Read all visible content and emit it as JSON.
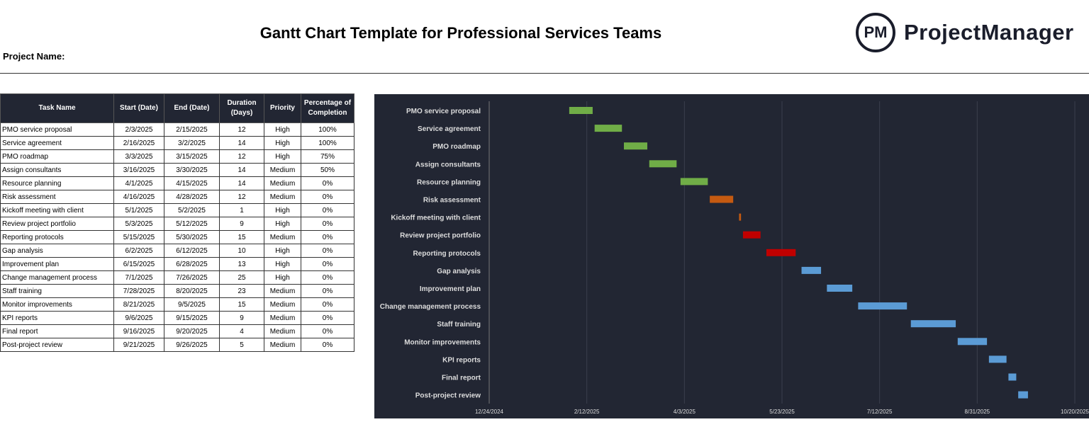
{
  "header": {
    "title": "Gantt Chart Template for Professional Services Teams",
    "project_name_label": "Project Name:",
    "logo_mark": "PM",
    "logo_text": "ProjectManager"
  },
  "table": {
    "columns": [
      "Task Name",
      "Start  (Date)",
      "End  (Date)",
      "Duration (Days)",
      "Priority",
      "Percentage of Completion"
    ],
    "rows": [
      [
        "PMO service proposal",
        "2/3/2025",
        "2/15/2025",
        "12",
        "High",
        "100%"
      ],
      [
        "Service agreement",
        "2/16/2025",
        "3/2/2025",
        "14",
        "High",
        "100%"
      ],
      [
        "PMO roadmap",
        "3/3/2025",
        "3/15/2025",
        "12",
        "High",
        "75%"
      ],
      [
        "Assign consultants",
        "3/16/2025",
        "3/30/2025",
        "14",
        "Medium",
        "50%"
      ],
      [
        "Resource planning",
        "4/1/2025",
        "4/15/2025",
        "14",
        "Medium",
        "0%"
      ],
      [
        "Risk assessment",
        "4/16/2025",
        "4/28/2025",
        "12",
        "Medium",
        "0%"
      ],
      [
        "Kickoff meeting with client",
        "5/1/2025",
        "5/2/2025",
        "1",
        "High",
        "0%"
      ],
      [
        "Review project portfolio",
        "5/3/2025",
        "5/12/2025",
        "9",
        "High",
        "0%"
      ],
      [
        "Reporting protocols",
        "5/15/2025",
        "5/30/2025",
        "15",
        "Medium",
        "0%"
      ],
      [
        "Gap analysis",
        "6/2/2025",
        "6/12/2025",
        "10",
        "High",
        "0%"
      ],
      [
        "Improvement plan",
        "6/15/2025",
        "6/28/2025",
        "13",
        "High",
        "0%"
      ],
      [
        "Change management process",
        "7/1/2025",
        "7/26/2025",
        "25",
        "High",
        "0%"
      ],
      [
        "Staff training",
        "7/28/2025",
        "8/20/2025",
        "23",
        "Medium",
        "0%"
      ],
      [
        "Monitor improvements",
        "8/21/2025",
        "9/5/2025",
        "15",
        "Medium",
        "0%"
      ],
      [
        "KPI reports",
        "9/6/2025",
        "9/15/2025",
        "9",
        "Medium",
        "0%"
      ],
      [
        "Final report",
        "9/16/2025",
        "9/20/2025",
        "4",
        "Medium",
        "0%"
      ],
      [
        "Post-project review",
        "9/21/2025",
        "9/26/2025",
        "5",
        "Medium",
        "0%"
      ]
    ]
  },
  "chart_data": {
    "type": "bar",
    "orientation": "horizontal-gantt",
    "background": "#222633",
    "xlim": [
      "12/24/2024",
      "10/20/2025"
    ],
    "x_ticks": [
      "12/24/2024",
      "2/12/2025",
      "4/3/2025",
      "5/23/2025",
      "7/12/2025",
      "8/31/2025",
      "10/20/2025"
    ],
    "grid": true,
    "tasks": [
      {
        "name": "PMO service proposal",
        "start": "2/3/2025",
        "end": "2/15/2025",
        "color": "#70ad47"
      },
      {
        "name": "Service agreement",
        "start": "2/16/2025",
        "end": "3/2/2025",
        "color": "#70ad47"
      },
      {
        "name": "PMO roadmap",
        "start": "3/3/2025",
        "end": "3/15/2025",
        "color": "#70ad47"
      },
      {
        "name": "Assign consultants",
        "start": "3/16/2025",
        "end": "3/30/2025",
        "color": "#70ad47"
      },
      {
        "name": "Resource planning",
        "start": "4/1/2025",
        "end": "4/15/2025",
        "color": "#70ad47"
      },
      {
        "name": "Risk assessment",
        "start": "4/16/2025",
        "end": "4/28/2025",
        "color": "#c55a11"
      },
      {
        "name": "Kickoff meeting with client",
        "start": "5/1/2025",
        "end": "5/2/2025",
        "color": "#c55a11"
      },
      {
        "name": "Review project portfolio",
        "start": "5/3/2025",
        "end": "5/12/2025",
        "color": "#c00000"
      },
      {
        "name": "Reporting protocols",
        "start": "5/15/2025",
        "end": "5/30/2025",
        "color": "#c00000"
      },
      {
        "name": "Gap analysis",
        "start": "6/2/2025",
        "end": "6/12/2025",
        "color": "#5b9bd5"
      },
      {
        "name": "Improvement plan",
        "start": "6/15/2025",
        "end": "6/28/2025",
        "color": "#5b9bd5"
      },
      {
        "name": "Change management process",
        "start": "7/1/2025",
        "end": "7/26/2025",
        "color": "#5b9bd5"
      },
      {
        "name": "Staff training",
        "start": "7/28/2025",
        "end": "8/20/2025",
        "color": "#5b9bd5"
      },
      {
        "name": "Monitor improvements",
        "start": "8/21/2025",
        "end": "9/5/2025",
        "color": "#5b9bd5"
      },
      {
        "name": "KPI reports",
        "start": "9/6/2025",
        "end": "9/15/2025",
        "color": "#5b9bd5"
      },
      {
        "name": "Final report",
        "start": "9/16/2025",
        "end": "9/20/2025",
        "color": "#5b9bd5"
      },
      {
        "name": "Post-project review",
        "start": "9/21/2025",
        "end": "9/26/2025",
        "color": "#5b9bd5"
      }
    ]
  }
}
